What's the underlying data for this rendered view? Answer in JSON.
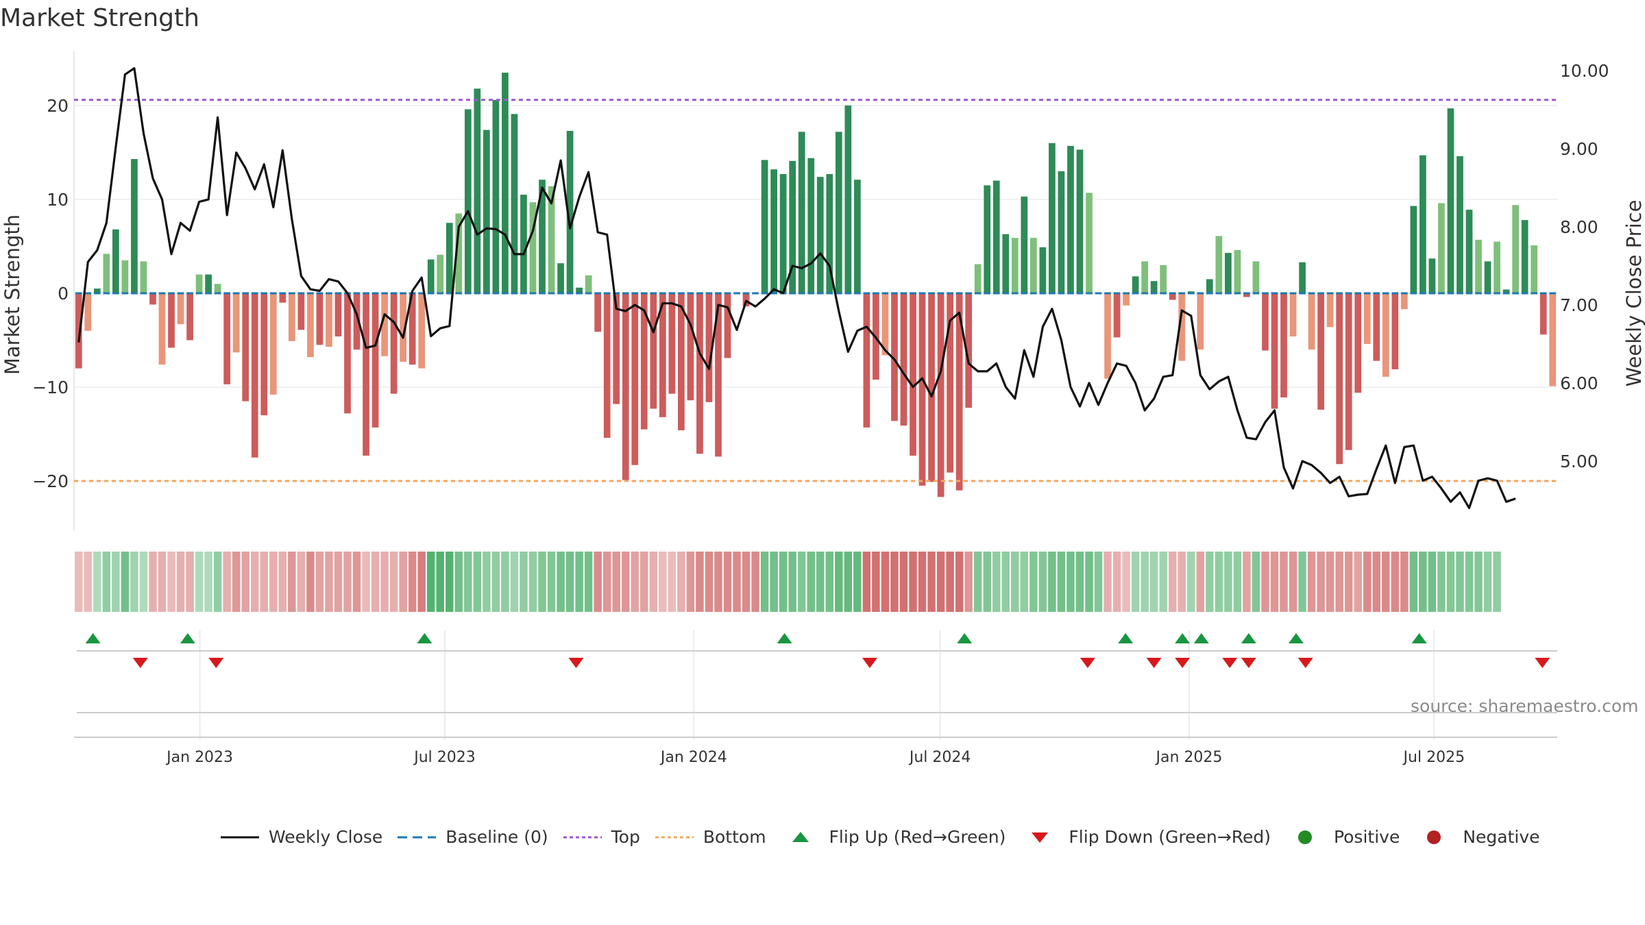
{
  "title": "Market Strength",
  "source": "source: sharemaestro.com",
  "colors": {
    "dark_green": "#2e8b57",
    "light_green": "#7fbf7b",
    "dark_red": "#cd5c5c",
    "light_red": "#e9967a",
    "line": "#111111",
    "top": "#9b59d0",
    "bottom": "#f0a860",
    "baseline": "#1f77b4",
    "flip_up": "#1a9641",
    "flip_down": "#d7191c",
    "positive": "#228b22",
    "negative": "#b22222"
  },
  "chart_data": {
    "type": "bar",
    "title": "Market Strength",
    "ylabel": "Market Strength",
    "y2label": "Weekly Close Price",
    "ylim": [
      -25,
      25
    ],
    "y2lim": [
      4.1,
      10.2
    ],
    "yticks": [
      -20,
      -10,
      0,
      10,
      20
    ],
    "y2ticks": [
      5.0,
      6.0,
      7.0,
      8.0,
      9.0,
      10.0
    ],
    "ytick_labels": [
      "−20",
      "−10",
      "0",
      "10",
      "20"
    ],
    "y2tick_labels": [
      "5.00",
      "6.00",
      "7.00",
      "8.00",
      "9.00",
      "10.00"
    ],
    "top_level": 20.6,
    "bottom_level": -20,
    "x_start": "2022-09-30",
    "x_end": "2025-09-30",
    "xticks": [
      "2023-01-01",
      "2023-07-01",
      "2024-01-01",
      "2024-07-01",
      "2025-01-01",
      "2025-07-01"
    ],
    "xtick_labels": [
      "Jan 2023",
      "Jul 2023",
      "Jan 2024",
      "Jul 2024",
      "Jan 2025",
      "Jul 2025"
    ],
    "weeks": 157,
    "strength": [
      -8,
      -4,
      0.5,
      4.2,
      6.8,
      3.5,
      14.3,
      3.4,
      -1.2,
      -7.6,
      -5.8,
      -3.3,
      -5,
      2,
      2,
      1,
      -9.7,
      -6.3,
      -11.5,
      -17.5,
      -13,
      -10.8,
      -1,
      -5.1,
      -3.9,
      -6.8,
      -5.5,
      -5.7,
      -4.6,
      -12.8,
      -6,
      -17.3,
      -14.3,
      -6.7,
      -10.7,
      -7.3,
      -7.6,
      -8,
      3.6,
      4.1,
      7.5,
      8.5,
      19.6,
      21.8,
      17.4,
      20.6,
      23.5,
      19.1,
      10.5,
      9.7,
      12.1,
      11.4,
      3.2,
      17.3,
      0.6,
      1.9,
      -4.1,
      -15.4,
      -11.8,
      -19.9,
      -18.3,
      -14.5,
      -12.3,
      -13.2,
      -10.7,
      -14.6,
      -11.4,
      -17.1,
      -11.6,
      -17.4,
      -6.9,
      0,
      -1.4,
      0,
      14.2,
      13.2,
      12.7,
      14.1,
      17.2,
      14.4,
      12.4,
      12.7,
      17.2,
      20,
      12.1,
      -14.3,
      -9.2,
      -6.6,
      -13.6,
      -14.1,
      -17.3,
      -20.5,
      -20.1,
      -21.7,
      -19.1,
      -21,
      -12.2,
      3.1,
      11.5,
      12,
      6.3,
      5.9,
      10.3,
      5.9,
      4.9,
      16,
      13,
      15.7,
      15.3,
      10.7,
      0,
      -9.1,
      -4.7,
      -1.3,
      1.8,
      3.4,
      1.3,
      3,
      -0.7,
      -7.2,
      0.2,
      -6,
      1.5,
      6.1,
      4.3,
      4.6,
      -0.4,
      3.4,
      -6.1,
      -12.3,
      -11.1,
      -4.6,
      3.3,
      -6,
      -12.4,
      -3.6,
      -18.2,
      -16.7,
      -10.6,
      -5.4,
      -7.2,
      -8.9,
      -8.1,
      -1.7,
      9.3,
      14.7,
      3.7,
      9.6,
      19.7,
      14.6,
      8.9,
      5.7,
      3.4,
      5.5,
      0.4,
      9.4,
      7.8,
      5.1,
      -4.4,
      -9.9
    ],
    "close": [
      6.52,
      7.55,
      7.7,
      8.05,
      9.02,
      9.95,
      10.03,
      9.2,
      8.62,
      8.35,
      7.65,
      8.05,
      7.95,
      8.32,
      8.35,
      9.4,
      8.15,
      8.95,
      8.75,
      8.48,
      8.8,
      8.25,
      8.98,
      8.1,
      7.37,
      7.2,
      7.18,
      7.33,
      7.3,
      7.15,
      6.88,
      6.45,
      6.48,
      6.88,
      6.78,
      6.58,
      7.18,
      7.35,
      6.6,
      6.7,
      6.73,
      8.0,
      8.2,
      7.9,
      7.98,
      7.97,
      7.9,
      7.65,
      7.65,
      7.95,
      8.5,
      8.3,
      8.85,
      7.98,
      8.38,
      8.7,
      7.93,
      7.9,
      6.95,
      6.92,
      7.0,
      6.93,
      6.65,
      7.02,
      7.02,
      6.98,
      6.75,
      6.38,
      6.18,
      7.0,
      6.97,
      6.68,
      7.05,
      6.98,
      7.08,
      7.2,
      7.15,
      7.5,
      7.47,
      7.53,
      7.66,
      7.5,
      6.92,
      6.4,
      6.67,
      6.72,
      6.58,
      6.42,
      6.3,
      6.12,
      5.95,
      6.06,
      5.83,
      6.15,
      6.8,
      6.9,
      6.25,
      6.15,
      6.15,
      6.25,
      5.95,
      5.8,
      6.42,
      6.08,
      6.72,
      6.95,
      6.55,
      5.95,
      5.7,
      6.0,
      5.72,
      6.0,
      6.25,
      6.22,
      6.0,
      5.65,
      5.8,
      6.08,
      6.1,
      6.93,
      6.86,
      6.1,
      5.92,
      6.02,
      6.08,
      5.65,
      5.3,
      5.28,
      5.5,
      5.65,
      4.92,
      4.65,
      5.0,
      4.95,
      4.85,
      4.72,
      4.8,
      4.55,
      4.57,
      4.58,
      4.9,
      5.2,
      4.72,
      5.18,
      5.2,
      4.75,
      4.8,
      4.65,
      4.48,
      4.6,
      4.4,
      4.75,
      4.78,
      4.75,
      4.48,
      4.52
    ],
    "heat_band": [
      [
        236,
        0.2
      ],
      [
        237,
        0.2
      ],
      [
        241,
        0.2
      ],
      [
        245,
        0.4
      ],
      [
        251,
        0.3
      ],
      [
        255,
        0.6
      ],
      [
        263,
        0.3
      ],
      [
        272,
        0.2
      ],
      [
        282,
        0.3
      ],
      [
        288,
        0.3
      ],
      [
        297,
        0.2
      ],
      [
        304,
        0.3
      ],
      [
        309,
        0.3
      ],
      [
        316,
        0.2
      ],
      [
        323,
        0.2
      ],
      [
        332,
        0.4
      ],
      [
        337,
        0.3
      ],
      [
        346,
        0.5
      ],
      [
        352,
        0.4
      ],
      [
        364,
        0.3
      ],
      [
        368,
        0.3
      ],
      [
        376,
        0.3
      ],
      [
        378,
        0.3
      ],
      [
        381,
        0.5
      ],
      [
        386,
        0.3
      ],
      [
        398,
        0.6
      ],
      [
        403,
        0.4
      ],
      [
        412,
        0.4
      ],
      [
        417,
        0.4
      ],
      [
        425,
        0.4
      ],
      [
        435,
        0.5
      ],
      [
        433,
        0.2
      ],
      [
        142,
        0.3
      ],
      [
        140,
        0.3
      ],
      [
        138,
        0.3
      ],
      [
        136,
        0.4
      ],
      [
        134,
        0.6
      ],
      [
        132,
        0.7
      ],
      [
        130,
        0.8
      ],
      [
        130,
        0.8
      ],
      [
        128,
        0.8
      ],
      [
        130,
        0.6
      ],
      [
        133,
        0.5
      ],
      [
        135,
        0.5
      ],
      [
        137,
        0.4
      ],
      [
        136,
        0.4
      ],
      [
        130,
        0.4
      ],
      [
        124,
        0.3
      ],
      [
        356,
        0.4
      ],
      [
        358,
        0.4
      ],
      [
        362,
        0.5
      ],
      [
        367,
        0.5
      ],
      [
        372,
        0.6
      ],
      [
        376,
        0.6
      ],
      [
        380,
        0.6
      ],
      [
        383,
        0.6
      ],
      [
        385,
        0.6
      ],
      [
        388,
        0.5
      ],
      [
        392,
        0.5
      ],
      [
        395,
        0.5
      ],
      [
        398,
        0.4
      ],
      [
        401,
        0.4
      ],
      [
        406,
        0.3
      ],
      [
        410,
        0.2
      ],
      [
        413,
        0.2
      ],
      [
        352,
        0.3
      ],
      [
        350,
        0.5
      ],
      [
        139,
        0.6
      ],
      [
        137,
        0.6
      ],
      [
        135,
        0.6
      ],
      [
        134,
        0.6
      ],
      [
        133,
        0.6
      ],
      [
        133,
        0.6
      ],
      [
        134,
        0.6
      ],
      [
        136,
        0.6
      ],
      [
        138,
        0.6
      ],
      [
        140,
        0.6
      ],
      [
        140,
        0.6
      ],
      [
        140,
        0.5
      ],
      [
        0,
        0.6
      ],
      [
        0,
        0.6
      ],
      [
        0,
        0.6
      ],
      [
        0,
        0.7
      ],
      [
        0,
        0.7
      ],
      [
        0,
        0.7
      ],
      [
        0,
        0.8
      ],
      [
        0,
        0.8
      ],
      [
        0,
        0.8
      ],
      [
        0,
        0.8
      ],
      [
        0,
        0.8
      ],
      [
        0,
        0.8
      ],
      [
        0,
        0.8
      ],
      [
        0,
        0.8
      ],
      [
        0,
        0.8
      ],
      [
        0,
        0.8
      ],
      [
        0,
        0.8
      ],
      [
        135,
        0.5
      ],
      [
        135,
        0.5
      ],
      [
        135,
        0.5
      ],
      [
        135,
        0.4
      ],
      [
        135,
        0.4
      ],
      [
        135,
        0.4
      ],
      [
        135,
        0.4
      ],
      [
        135,
        0.5
      ],
      [
        135,
        0.5
      ],
      [
        135,
        0.6
      ],
      [
        135,
        0.6
      ],
      [
        135,
        0.6
      ],
      [
        135,
        0.6
      ],
      [
        135,
        0.6
      ],
      [
        135,
        0.5
      ],
      [
        0,
        0.3
      ],
      [
        0,
        0.3
      ],
      [
        0,
        0.2
      ],
      [
        135,
        0.3
      ],
      [
        135,
        0.3
      ],
      [
        135,
        0.3
      ],
      [
        135,
        0.3
      ],
      [
        0,
        0.3
      ],
      [
        0,
        0.3
      ],
      [
        135,
        0.3
      ],
      [
        0,
        0.4
      ],
      [
        135,
        0.4
      ],
      [
        135,
        0.4
      ],
      [
        135,
        0.4
      ],
      [
        135,
        0.4
      ],
      [
        0,
        0.4
      ],
      [
        0,
        0.5
      ],
      [
        0,
        0.5
      ],
      [
        0,
        0.5
      ],
      [
        0,
        0.5
      ],
      [
        0,
        0.5
      ],
      [
        0,
        0.5
      ],
      [
        0,
        0.5
      ],
      [
        0,
        0.5
      ],
      [
        0,
        0.5
      ],
      [
        0,
        0.5
      ],
      [
        0,
        0.5
      ],
      [
        0,
        0.4
      ],
      [
        135,
        0.6
      ],
      [
        135,
        0.6
      ],
      [
        135,
        0.6
      ],
      [
        135,
        0.6
      ],
      [
        135,
        0.6
      ],
      [
        135,
        0.6
      ],
      [
        135,
        0.6
      ],
      [
        135,
        0.6
      ],
      [
        135,
        0.5
      ],
      [
        135,
        0.5
      ],
      [
        135,
        0.5
      ],
      [
        135,
        0.5
      ],
      [
        135,
        0.5
      ],
      [
        0,
        0.4
      ],
      [
        0,
        0.4
      ]
    ],
    "flip_up_dates": [
      "2022-10-14",
      "2022-12-23",
      "2023-06-16",
      "2024-03-08",
      "2024-07-19",
      "2024-11-15",
      "2024-12-27",
      "2025-01-10",
      "2025-02-14",
      "2025-03-21",
      "2025-06-20"
    ],
    "flip_down_dates": [
      "2022-11-18",
      "2023-01-13",
      "2023-10-06",
      "2024-05-10",
      "2024-10-18",
      "2024-12-06",
      "2024-12-27",
      "2025-01-31",
      "2025-02-14",
      "2025-03-28",
      "2025-09-19"
    ],
    "legend": [
      {
        "kind": "line",
        "label": "Weekly Close"
      },
      {
        "kind": "baseline",
        "label": "Baseline (0)"
      },
      {
        "kind": "top",
        "label": "Top"
      },
      {
        "kind": "bottom",
        "label": "Bottom"
      },
      {
        "kind": "flip_up",
        "label": "Flip Up (Red→Green)"
      },
      {
        "kind": "flip_down",
        "label": "Flip Down (Green→Red)"
      },
      {
        "kind": "positive",
        "label": "Positive"
      },
      {
        "kind": "negative",
        "label": "Negative"
      }
    ],
    "legend_position": "bottom"
  }
}
